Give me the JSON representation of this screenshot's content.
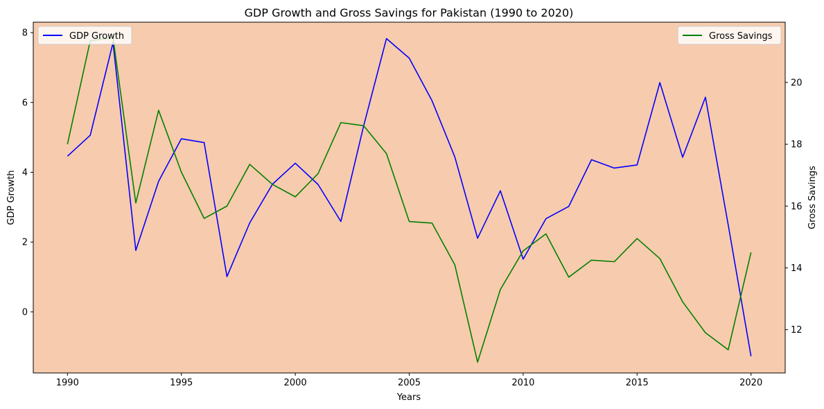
{
  "chart_data": {
    "type": "line",
    "title": "GDP Growth and Gross Savings for Pakistan (1990 to 2020)",
    "xlabel": "Years",
    "ylabel_left": "GDP Growth",
    "ylabel_right": "Gross Savings",
    "background_color": "#f7cbad",
    "x": [
      1990,
      1991,
      1992,
      1993,
      1994,
      1995,
      1996,
      1997,
      1998,
      1999,
      2000,
      2001,
      2002,
      2003,
      2004,
      2005,
      2006,
      2007,
      2008,
      2009,
      2010,
      2011,
      2012,
      2013,
      2014,
      2015,
      2016,
      2017,
      2018,
      2019,
      2020
    ],
    "xlim": [
      1988.5,
      2021.5
    ],
    "x_ticks": [
      1990,
      1995,
      2000,
      2005,
      2010,
      2015,
      2020
    ],
    "series": [
      {
        "name": "GDP Growth",
        "axis": "left",
        "color": "#0000ff",
        "values": [
          4.46,
          5.06,
          7.71,
          1.76,
          3.74,
          4.96,
          4.85,
          1.01,
          2.55,
          3.66,
          4.26,
          3.65,
          2.59,
          5.33,
          7.83,
          7.27,
          6.05,
          4.44,
          2.11,
          3.47,
          1.51,
          2.67,
          3.02,
          4.36,
          4.12,
          4.21,
          6.57,
          4.43,
          6.15,
          2.49,
          -1.27
        ]
      },
      {
        "name": "Gross Savings",
        "axis": "right",
        "color": "#008000",
        "values": [
          18.0,
          21.35,
          21.45,
          16.1,
          19.1,
          17.1,
          15.6,
          16.0,
          17.35,
          16.7,
          16.3,
          17.05,
          18.7,
          18.6,
          17.7,
          15.5,
          15.45,
          14.1,
          10.95,
          13.3,
          14.55,
          15.1,
          13.7,
          14.25,
          14.2,
          14.95,
          14.3,
          12.9,
          11.9,
          11.35,
          14.5
        ]
      }
    ],
    "left_axis": {
      "ylim": [
        -1.75,
        8.3
      ],
      "ticks": [
        0,
        2,
        4,
        6,
        8
      ]
    },
    "right_axis": {
      "ylim": [
        10.6,
        21.95
      ],
      "ticks": [
        12,
        14,
        16,
        18,
        20
      ]
    },
    "legend_left_position": "upper-left",
    "legend_right_position": "upper-right",
    "grid": false
  }
}
